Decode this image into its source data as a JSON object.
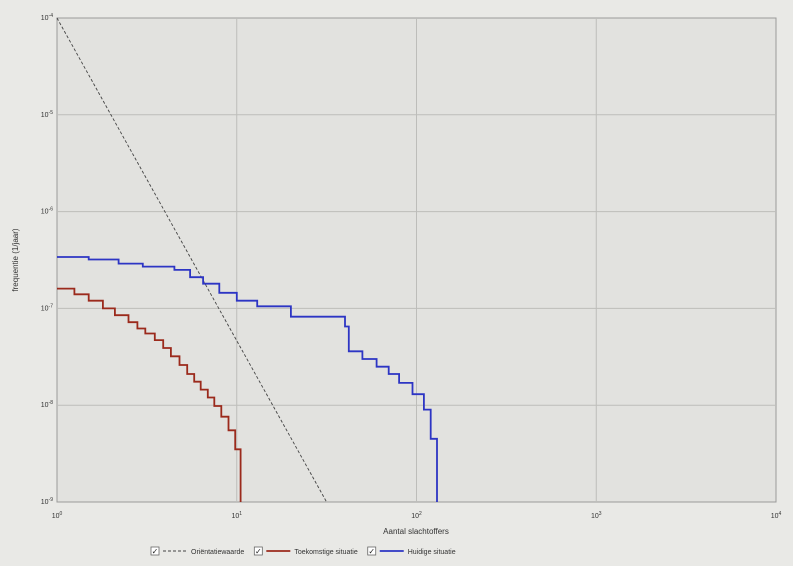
{
  "chart_data": {
    "type": "line",
    "title": "",
    "xlabel": "Aantal slachtoffers",
    "ylabel": "frequentie (1/jaar)",
    "x_scale": "log",
    "y_scale": "log",
    "xlim": [
      1,
      10000
    ],
    "ylim": [
      1e-09,
      0.0001
    ],
    "grid": true,
    "legend_position": "bottom",
    "x_ticks": [
      {
        "value": 1,
        "base": "10",
        "exp": "0"
      },
      {
        "value": 10,
        "base": "10",
        "exp": "1"
      },
      {
        "value": 100,
        "base": "10",
        "exp": "2"
      },
      {
        "value": 1000,
        "base": "10",
        "exp": "3"
      },
      {
        "value": 10000,
        "base": "10",
        "exp": "4"
      }
    ],
    "y_ticks": [
      {
        "value": 1e-09,
        "base": "10",
        "exp": "-9"
      },
      {
        "value": 1e-08,
        "base": "10",
        "exp": "-8"
      },
      {
        "value": 1e-07,
        "base": "10",
        "exp": "-7"
      },
      {
        "value": 1e-06,
        "base": "10",
        "exp": "-6"
      },
      {
        "value": 1e-05,
        "base": "10",
        "exp": "-5"
      },
      {
        "value": 0.0001,
        "base": "10",
        "exp": "-4"
      }
    ],
    "series": [
      {
        "name": "Oriëntatiewaarde",
        "color": "#444444",
        "style": "dashed",
        "x": [
          1,
          31.6
        ],
        "y": [
          0.0001,
          1e-09
        ]
      },
      {
        "name": "Toekomstige situatie",
        "color": "#9b2a1c",
        "style": "step",
        "x": [
          1,
          1.25,
          1.5,
          1.8,
          2.1,
          2.5,
          2.8,
          3.1,
          3.5,
          3.9,
          4.3,
          4.8,
          5.3,
          5.8,
          6.3,
          6.9,
          7.5,
          8.2,
          9.0,
          9.8,
          10.5
        ],
        "y": [
          1.6e-07,
          1.4e-07,
          1.2e-07,
          1e-07,
          8.5e-08,
          7.2e-08,
          6.2e-08,
          5.5e-08,
          4.7e-08,
          3.9e-08,
          3.2e-08,
          2.6e-08,
          2.1e-08,
          1.75e-08,
          1.45e-08,
          1.2e-08,
          9.8e-09,
          7.6e-09,
          5.5e-09,
          3.5e-09,
          1e-09
        ]
      },
      {
        "name": "Huidige situatie",
        "color": "#2d35c4",
        "style": "step",
        "x": [
          1,
          1.5,
          2.2,
          3.0,
          4.5,
          5.5,
          6.5,
          8.0,
          10.0,
          13.0,
          20.0,
          40.0,
          42.0,
          50.0,
          60.0,
          70.0,
          80.0,
          95.0,
          110.0,
          120.0,
          130.0
        ],
        "y": [
          3.4e-07,
          3.2e-07,
          2.9e-07,
          2.7e-07,
          2.5e-07,
          2.1e-07,
          1.8e-07,
          1.45e-07,
          1.2e-07,
          1.05e-07,
          8.2e-08,
          6.5e-08,
          3.6e-08,
          3e-08,
          2.5e-08,
          2.1e-08,
          1.7e-08,
          1.3e-08,
          9e-09,
          4.5e-09,
          1e-09
        ]
      }
    ]
  }
}
